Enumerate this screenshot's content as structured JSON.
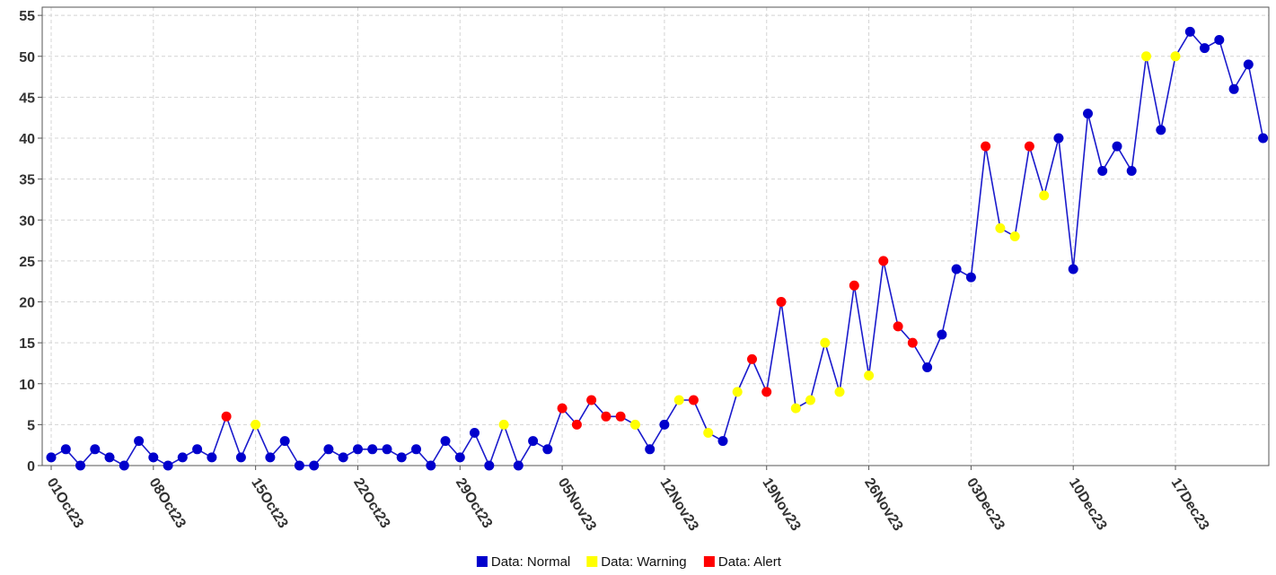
{
  "chart_data": {
    "type": "line",
    "title": "",
    "xlabel": "",
    "ylabel": "",
    "ylim": [
      0,
      56
    ],
    "y_ticks": [
      0,
      5,
      10,
      15,
      20,
      25,
      30,
      35,
      40,
      45,
      50,
      55
    ],
    "x_tick_labels": [
      "01Oct23",
      "08Oct23",
      "15Oct23",
      "22Oct23",
      "29Oct23",
      "05Nov23",
      "12Nov23",
      "19Nov23",
      "26Nov23",
      "03Dec23",
      "10Dec23",
      "17Dec23"
    ],
    "grid": true,
    "legend_position": "bottom",
    "line_color": "#1a1acc",
    "status_colors": {
      "normal": "#0000cc",
      "warning": "#ffff00",
      "alert": "#ff0000"
    },
    "legend": [
      {
        "key": "normal",
        "label": "Data: Normal"
      },
      {
        "key": "warning",
        "label": "Data: Warning"
      },
      {
        "key": "alert",
        "label": "Data: Alert"
      }
    ],
    "points": [
      {
        "date": "01Oct23",
        "value": 1,
        "status": "normal"
      },
      {
        "date": "02Oct23",
        "value": 2,
        "status": "normal"
      },
      {
        "date": "03Oct23",
        "value": 0,
        "status": "normal"
      },
      {
        "date": "04Oct23",
        "value": 2,
        "status": "normal"
      },
      {
        "date": "05Oct23",
        "value": 1,
        "status": "normal"
      },
      {
        "date": "06Oct23",
        "value": 0,
        "status": "normal"
      },
      {
        "date": "07Oct23",
        "value": 3,
        "status": "normal"
      },
      {
        "date": "08Oct23",
        "value": 1,
        "status": "normal"
      },
      {
        "date": "09Oct23",
        "value": 0,
        "status": "normal"
      },
      {
        "date": "10Oct23",
        "value": 1,
        "status": "normal"
      },
      {
        "date": "11Oct23",
        "value": 2,
        "status": "normal"
      },
      {
        "date": "12Oct23",
        "value": 1,
        "status": "normal"
      },
      {
        "date": "13Oct23",
        "value": 6,
        "status": "alert"
      },
      {
        "date": "14Oct23",
        "value": 1,
        "status": "normal"
      },
      {
        "date": "15Oct23",
        "value": 5,
        "status": "warning"
      },
      {
        "date": "16Oct23",
        "value": 1,
        "status": "normal"
      },
      {
        "date": "17Oct23",
        "value": 3,
        "status": "normal"
      },
      {
        "date": "18Oct23",
        "value": 0,
        "status": "normal"
      },
      {
        "date": "19Oct23",
        "value": 0,
        "status": "normal"
      },
      {
        "date": "20Oct23",
        "value": 2,
        "status": "normal"
      },
      {
        "date": "21Oct23",
        "value": 1,
        "status": "normal"
      },
      {
        "date": "22Oct23",
        "value": 2,
        "status": "normal"
      },
      {
        "date": "23Oct23",
        "value": 2,
        "status": "normal"
      },
      {
        "date": "24Oct23",
        "value": 2,
        "status": "normal"
      },
      {
        "date": "25Oct23",
        "value": 1,
        "status": "normal"
      },
      {
        "date": "26Oct23",
        "value": 2,
        "status": "normal"
      },
      {
        "date": "27Oct23",
        "value": 0,
        "status": "normal"
      },
      {
        "date": "28Oct23",
        "value": 3,
        "status": "normal"
      },
      {
        "date": "29Oct23",
        "value": 1,
        "status": "normal"
      },
      {
        "date": "30Oct23",
        "value": 4,
        "status": "normal"
      },
      {
        "date": "31Oct23",
        "value": 0,
        "status": "normal"
      },
      {
        "date": "01Nov23",
        "value": 5,
        "status": "warning"
      },
      {
        "date": "02Nov23",
        "value": 0,
        "status": "normal"
      },
      {
        "date": "03Nov23",
        "value": 3,
        "status": "normal"
      },
      {
        "date": "04Nov23",
        "value": 2,
        "status": "normal"
      },
      {
        "date": "05Nov23",
        "value": 7,
        "status": "alert"
      },
      {
        "date": "06Nov23",
        "value": 5,
        "status": "alert"
      },
      {
        "date": "07Nov23",
        "value": 8,
        "status": "alert"
      },
      {
        "date": "08Nov23",
        "value": 6,
        "status": "alert"
      },
      {
        "date": "09Nov23",
        "value": 6,
        "status": "alert"
      },
      {
        "date": "10Nov23",
        "value": 5,
        "status": "warning"
      },
      {
        "date": "11Nov23",
        "value": 2,
        "status": "normal"
      },
      {
        "date": "12Nov23",
        "value": 5,
        "status": "normal"
      },
      {
        "date": "13Nov23",
        "value": 8,
        "status": "warning"
      },
      {
        "date": "14Nov23",
        "value": 8,
        "status": "alert"
      },
      {
        "date": "15Nov23",
        "value": 4,
        "status": "warning"
      },
      {
        "date": "16Nov23",
        "value": 3,
        "status": "normal"
      },
      {
        "date": "17Nov23",
        "value": 9,
        "status": "warning"
      },
      {
        "date": "18Nov23",
        "value": 13,
        "status": "alert"
      },
      {
        "date": "19Nov23",
        "value": 9,
        "status": "alert"
      },
      {
        "date": "20Nov23",
        "value": 20,
        "status": "alert"
      },
      {
        "date": "21Nov23",
        "value": 7,
        "status": "warning"
      },
      {
        "date": "22Nov23",
        "value": 8,
        "status": "warning"
      },
      {
        "date": "23Nov23",
        "value": 15,
        "status": "warning"
      },
      {
        "date": "24Nov23",
        "value": 9,
        "status": "warning"
      },
      {
        "date": "25Nov23",
        "value": 22,
        "status": "alert"
      },
      {
        "date": "26Nov23",
        "value": 11,
        "status": "warning"
      },
      {
        "date": "27Nov23",
        "value": 25,
        "status": "alert"
      },
      {
        "date": "28Nov23",
        "value": 17,
        "status": "alert"
      },
      {
        "date": "29Nov23",
        "value": 15,
        "status": "alert"
      },
      {
        "date": "30Nov23",
        "value": 12,
        "status": "normal"
      },
      {
        "date": "01Dec23",
        "value": 16,
        "status": "normal"
      },
      {
        "date": "02Dec23",
        "value": 24,
        "status": "normal"
      },
      {
        "date": "03Dec23",
        "value": 23,
        "status": "normal"
      },
      {
        "date": "04Dec23",
        "value": 39,
        "status": "alert"
      },
      {
        "date": "05Dec23",
        "value": 29,
        "status": "warning"
      },
      {
        "date": "06Dec23",
        "value": 28,
        "status": "warning"
      },
      {
        "date": "07Dec23",
        "value": 39,
        "status": "alert"
      },
      {
        "date": "08Dec23",
        "value": 33,
        "status": "warning"
      },
      {
        "date": "09Dec23",
        "value": 40,
        "status": "normal"
      },
      {
        "date": "10Dec23",
        "value": 24,
        "status": "normal"
      },
      {
        "date": "11Dec23",
        "value": 43,
        "status": "normal"
      },
      {
        "date": "12Dec23",
        "value": 36,
        "status": "normal"
      },
      {
        "date": "13Dec23",
        "value": 39,
        "status": "normal"
      },
      {
        "date": "14Dec23",
        "value": 36,
        "status": "normal"
      },
      {
        "date": "15Dec23",
        "value": 50,
        "status": "warning"
      },
      {
        "date": "16Dec23",
        "value": 41,
        "status": "normal"
      },
      {
        "date": "17Dec23",
        "value": 50,
        "status": "warning"
      },
      {
        "date": "18Dec23",
        "value": 53,
        "status": "normal"
      },
      {
        "date": "19Dec23",
        "value": 51,
        "status": "normal"
      },
      {
        "date": "20Dec23",
        "value": 52,
        "status": "normal"
      },
      {
        "date": "21Dec23",
        "value": 46,
        "status": "normal"
      },
      {
        "date": "22Dec23",
        "value": 49,
        "status": "normal"
      },
      {
        "date": "23Dec23",
        "value": 40,
        "status": "normal"
      }
    ]
  }
}
